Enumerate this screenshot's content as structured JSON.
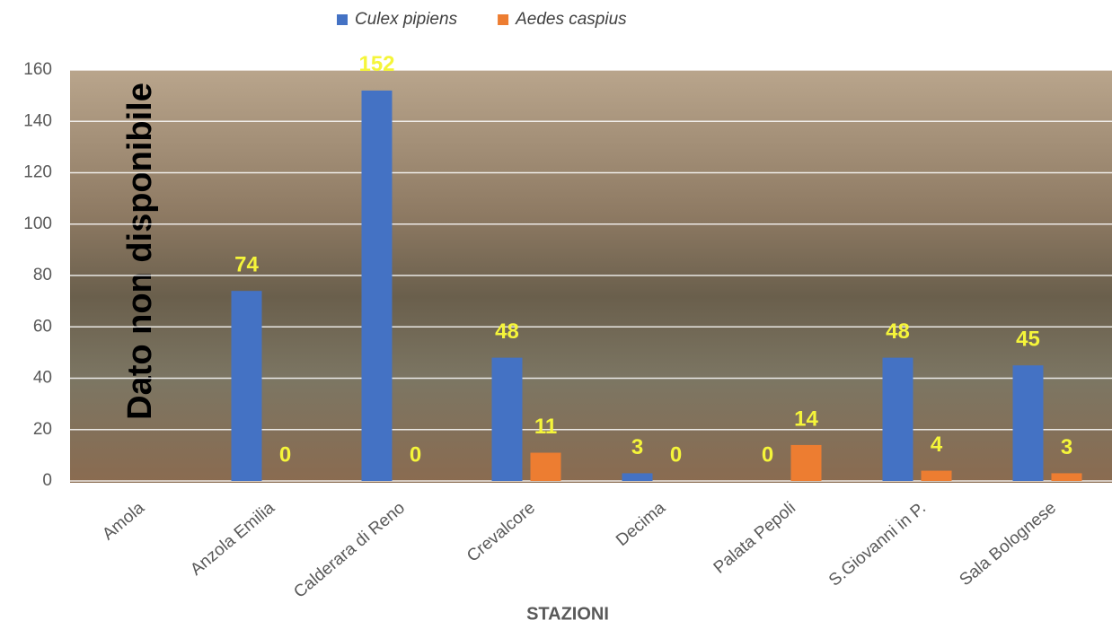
{
  "chart_data": {
    "type": "bar",
    "categories": [
      "Amola",
      "Anzola Emilia",
      "Calderara di Reno",
      "Crevalcore",
      "Decima",
      "Palata Pepoli",
      "S.Giovanni in P.",
      "Sala Bolognese"
    ],
    "series": [
      {
        "name": "Culex pipiens",
        "color": "#4472c4",
        "values": [
          null,
          74,
          152,
          48,
          3,
          0,
          48,
          45
        ]
      },
      {
        "name": "Aedes caspius",
        "color": "#ed7d31",
        "values": [
          null,
          0,
          0,
          11,
          0,
          14,
          4,
          3
        ]
      }
    ],
    "ylim": [
      0,
      160
    ],
    "yticks": [
      0,
      20,
      40,
      60,
      80,
      100,
      120,
      140,
      160
    ],
    "grid": true,
    "xlabel": "STAZIONI",
    "annotation": "Dato non disponibile",
    "legend": "top"
  }
}
